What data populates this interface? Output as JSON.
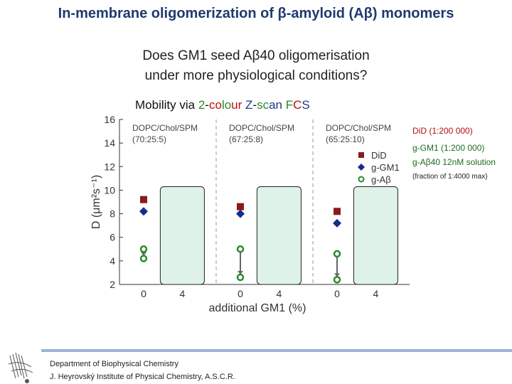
{
  "title": "In-membrane oligomerization of β-amyloid (Aβ) monomers",
  "question_line1": "Does GM1 seed Aβ40 oligomerisation",
  "question_line2": "under more physiological conditions?",
  "mobility": {
    "prefix": "Mobility via",
    "p2": "2",
    "dash": "-",
    "co": "co",
    "lo": "lo",
    "ur": "ur",
    "z": "Z",
    "dash2": "-",
    "sc": "sc",
    "an": "an",
    "f": "F",
    "c": "C",
    "s": "S"
  },
  "side_labels": {
    "did": "DiD (1:200 000)",
    "ggm1": "g-GM1 (1:200 000)",
    "gab": "g-Aβ40 12nM solution",
    "frac": "(fraction of 1:4000 max)"
  },
  "footer": {
    "dept": "Department of Biophysical Chemistry",
    "inst": "J. Heyrovský Institute of Physical Chemistry, A.S.C.R."
  },
  "chart_data": {
    "type": "scatter",
    "xlabel": "additional GM1 (%)",
    "ylabel": "D (μm²s⁻¹)",
    "ylim": [
      2,
      16
    ],
    "yticks": [
      2,
      4,
      6,
      8,
      10,
      12,
      14,
      16
    ],
    "groups": [
      {
        "label_line1": "DOPC/Chol/SPM",
        "label_line2": "(70:25:5)",
        "xticks": [
          "0",
          "4"
        ]
      },
      {
        "label_line1": "DOPC/Chol/SPM",
        "label_line2": "(67:25:8)",
        "xticks": [
          "0",
          "4"
        ]
      },
      {
        "label_line1": "DOPC/Chol/SPM",
        "label_line2": "(65:25:10)",
        "xticks": [
          "0",
          "4"
        ]
      }
    ],
    "series": [
      {
        "name": "DiD",
        "color": "#8b1a1a",
        "marker": "square",
        "values": [
          9.2,
          8.6,
          8.2
        ]
      },
      {
        "name": "g-GM1",
        "color": "#1a2a8b",
        "marker": "diamond",
        "values": [
          8.2,
          8.0,
          7.2
        ]
      },
      {
        "name": "g-Aβ",
        "color": "#2a8a2a",
        "marker": "circle-open",
        "values_start": [
          5.0,
          5.0,
          4.6
        ],
        "values_end": [
          4.2,
          2.6,
          2.4
        ]
      }
    ],
    "legend_position": "top-right",
    "grid": false,
    "highlight_box_range": [
      2,
      10.3
    ]
  }
}
